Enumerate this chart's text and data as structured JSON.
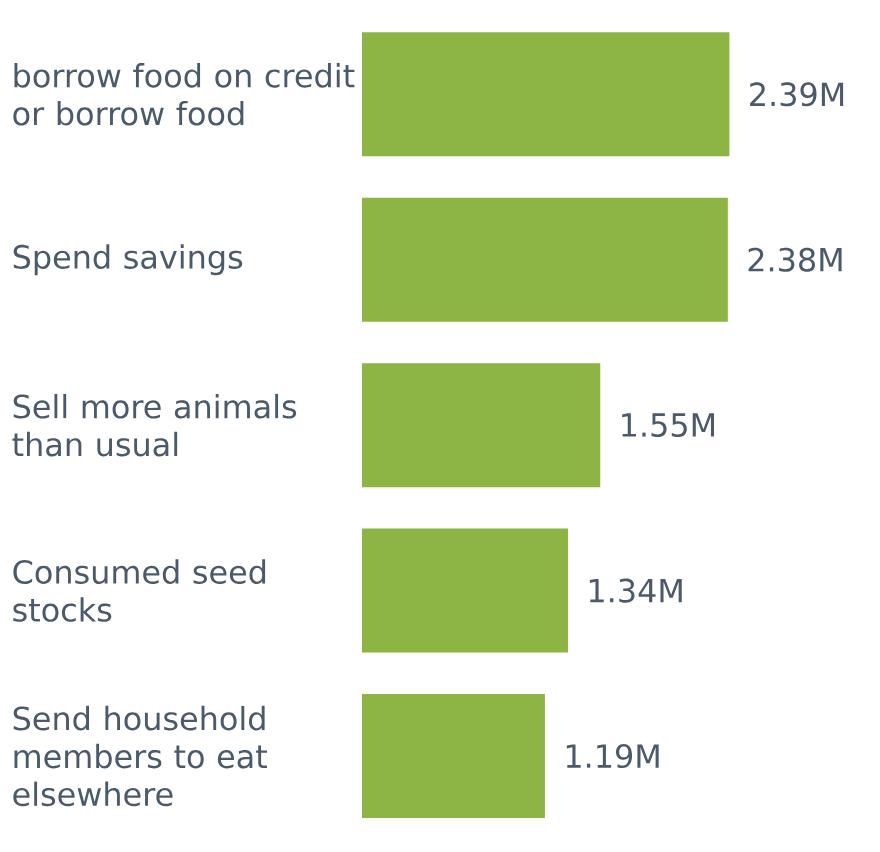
{
  "chart_data": {
    "type": "bar",
    "orientation": "horizontal",
    "categories": [
      "borrow food on credit or borrow food",
      "Spend savings",
      "Sell more animals than usual",
      "Consumed seed stocks",
      "Send household members to eat elsewhere"
    ],
    "values": [
      2.39,
      2.38,
      1.55,
      1.34,
      1.19
    ],
    "value_labels": [
      "2.39M",
      "2.38M",
      "1.55M",
      "1.34M",
      "1.19M"
    ],
    "color": "#8db543",
    "tick_labels": "y"
  }
}
